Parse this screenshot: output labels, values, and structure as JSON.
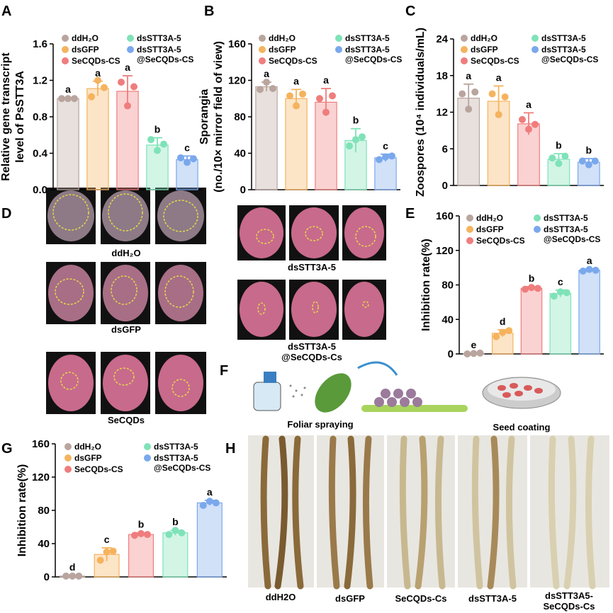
{
  "chart_data": [
    {
      "type": "bar",
      "ylabel": [
        "Relative gene transcript",
        "level of PsSTT3A"
      ],
      "categories": [
        "ddH₂O",
        "dsGFP",
        "SeCQDs-CS",
        "dsSTT3A-5",
        "dsSTT3A-5\n@SeCQDs-CS"
      ],
      "colors": [
        "#b9a59e",
        "#f5b35e",
        "#f07d7d",
        "#7fe2b8",
        "#7aa8ec"
      ],
      "values": [
        1.0,
        1.11,
        1.08,
        0.49,
        0.33
      ],
      "errors": [
        0.01,
        0.08,
        0.17,
        0.08,
        0.04
      ],
      "replicates": [
        [
          1.0,
          1.0,
          1.0
        ],
        [
          1.02,
          1.2,
          1.12
        ],
        [
          1.18,
          0.92,
          1.13
        ],
        [
          0.55,
          0.43,
          0.5
        ],
        [
          0.35,
          0.3,
          0.34
        ]
      ],
      "letters": [
        "a",
        "a",
        "a",
        "b",
        "c"
      ],
      "ylim": [
        0,
        1.6
      ],
      "yticks": [
        {
          "value": 0,
          "label": "0.0"
        },
        {
          "value": 0.4,
          "label": "0.4"
        },
        {
          "value": 0.8,
          "label": "0.8"
        },
        {
          "value": 1.2,
          "label": "1.2"
        },
        {
          "value": 1.6,
          "label": "1.6"
        }
      ]
    },
    {
      "type": "bar",
      "ylabel": [
        "Sporangia",
        "(no./10× mirror field of view)"
      ],
      "categories": [
        "ddH₂O",
        "dsGFP",
        "SeCQDs-CS",
        "dsSTT3A-5",
        "dsSTT3A-5\n@SeCQDs-CS"
      ],
      "colors": [
        "#b9a59e",
        "#f5b35e",
        "#f07d7d",
        "#7fe2b8",
        "#7aa8ec"
      ],
      "values": [
        113,
        100,
        96,
        54,
        35
      ],
      "errors": [
        5,
        10,
        15,
        13,
        4
      ],
      "replicates": [
        [
          110,
          118,
          111
        ],
        [
          103,
          92,
          105
        ],
        [
          100,
          85,
          103
        ],
        [
          48,
          55,
          58
        ],
        [
          33,
          36,
          37
        ]
      ],
      "letters": [
        "a",
        "a",
        "a",
        "b",
        "c"
      ],
      "ylim": [
        0,
        160
      ],
      "yticks": [
        0,
        40,
        80,
        120,
        160
      ]
    },
    {
      "type": "bar",
      "ylabel": [
        "Zoospores (10⁴ individuals/mL)"
      ],
      "categories": [
        "ddH₂O",
        "dsGFP",
        "SeCQDs-CS",
        "dsSTT3A-5",
        "dsSTT3A-5\n@SeCQDs-CS"
      ],
      "colors": [
        "#b9a59e",
        "#f5b35e",
        "#f07d7d",
        "#7fe2b8",
        "#7aa8ec"
      ],
      "values": [
        14.3,
        13.8,
        10.1,
        4.3,
        3.8
      ],
      "errors": [
        2.3,
        2.5,
        1.8,
        0.9,
        0.6
      ],
      "replicates": [
        [
          15,
          12.5,
          15.3
        ],
        [
          15,
          11.6,
          14.5
        ],
        [
          10.8,
          9.2,
          10
        ],
        [
          4.5,
          3.6,
          4.8
        ],
        [
          4,
          3.4,
          4
        ]
      ],
      "letters": [
        "a",
        "a",
        "a",
        "b",
        "b"
      ],
      "ylim": [
        0,
        24
      ],
      "yticks": [
        0,
        6,
        12,
        18,
        24
      ]
    },
    {
      "type": "bar",
      "ylabel": [
        "Inhibition rate(%)"
      ],
      "categories": [
        "ddH₂O",
        "dsGFP",
        "SeCQDs-CS",
        "dsSTT3A-5",
        "dsSTT3A-5\n@SeCQDs-CS"
      ],
      "colors": [
        "#b9a59e",
        "#f5b35e",
        "#f07d7d",
        "#7fe2b8",
        "#7aa8ec"
      ],
      "values": [
        0.5,
        24,
        76,
        70,
        97
      ],
      "errors": [
        0.5,
        4,
        2,
        4,
        1.5
      ],
      "replicates": [
        [
          0,
          0.5,
          1
        ],
        [
          20,
          25,
          27
        ],
        [
          75,
          77,
          76
        ],
        [
          67,
          72,
          71
        ],
        [
          96,
          98,
          97
        ]
      ],
      "letters": [
        "e",
        "d",
        "b",
        "c",
        "a"
      ],
      "ylim": [
        0,
        160
      ],
      "yticks": [
        0,
        40,
        80,
        120,
        160
      ]
    },
    {
      "type": "bar",
      "ylabel": [
        "Inhibition rate(%)"
      ],
      "categories": [
        "ddH₂O",
        "dsGFP",
        "SeCQDs-CS",
        "dsSTT3A-5",
        "dsSTT3A-5\n@SeCQDs-CS"
      ],
      "colors": [
        "#b9a59e",
        "#f5b35e",
        "#f07d7d",
        "#7fe2b8",
        "#7aa8ec"
      ],
      "values": [
        1,
        27,
        51,
        53,
        89
      ],
      "errors": [
        0.5,
        8,
        2,
        3,
        3
      ],
      "replicates": [
        [
          1,
          1,
          1
        ],
        [
          20,
          30,
          31
        ],
        [
          50,
          52,
          51
        ],
        [
          51,
          56,
          53
        ],
        [
          86,
          91,
          89
        ]
      ],
      "letters": [
        "d",
        "c",
        "b",
        "b",
        "a"
      ],
      "ylim": [
        0,
        160
      ],
      "yticks": [
        0,
        40,
        80,
        120,
        160
      ]
    }
  ],
  "panel_labels": [
    "A",
    "B",
    "C",
    "D",
    "E",
    "F",
    "G",
    "H"
  ],
  "panel_D": {
    "captions": [
      "ddH₂O",
      "dsGFP",
      "SeCQDs",
      "dsSTT3A-5",
      "dsSTT3A-5\n@SeCQDs-Cs"
    ]
  },
  "panel_F": {
    "captions": [
      "Foliar spraying",
      "Seed coating"
    ]
  },
  "panel_H": {
    "captions": [
      "ddH2O",
      "dsGFP",
      "SeCQDs-Cs",
      "dsSTT3A-5",
      "dsSTT3A5-\nSeCQDs-Cs"
    ]
  }
}
